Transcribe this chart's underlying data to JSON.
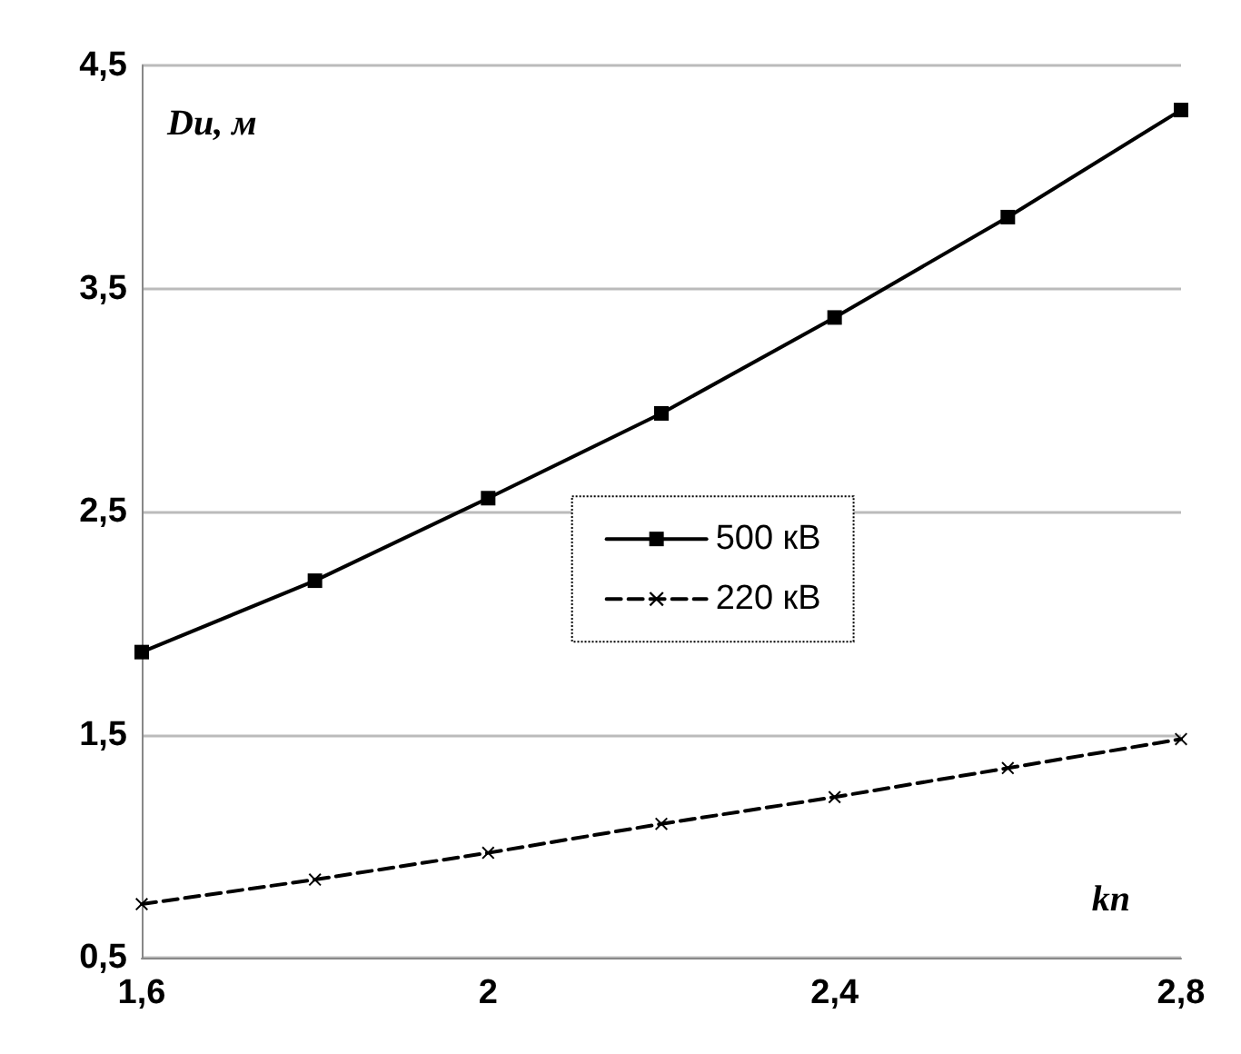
{
  "chart_data": {
    "type": "line",
    "xlabel": "kп",
    "ylabel": "Du, м",
    "x": [
      1.6,
      1.8,
      2.0,
      2.2,
      2.4,
      2.6,
      2.8
    ],
    "series": [
      {
        "name": "500 кВ",
        "color": "#000000",
        "marker": "square",
        "line_style": "solid",
        "values": [
          1.87,
          2.19,
          2.56,
          2.94,
          3.37,
          3.82,
          4.3
        ]
      },
      {
        "name": "220 кВ",
        "color": "#000000",
        "marker": "cross",
        "line_style": "dashed",
        "values": [
          0.74,
          0.85,
          0.97,
          1.1,
          1.22,
          1.35,
          1.48
        ]
      }
    ],
    "xlim": [
      1.6,
      2.8
    ],
    "xticks": [
      {
        "value": 1.6,
        "label": "1,6"
      },
      2,
      {
        "value": 2.4,
        "label": "2,4"
      },
      {
        "value": 2.8,
        "label": "2,8"
      }
    ],
    "ylim": [
      0.5,
      4.5
    ],
    "yticks": [
      {
        "value": 0.5,
        "label": "0,5"
      },
      {
        "value": 1.5,
        "label": "1,5"
      },
      {
        "value": 2.5,
        "label": "2,5"
      },
      {
        "value": 3.5,
        "label": "3,5"
      },
      {
        "value": 4.5,
        "label": "4,5"
      }
    ],
    "grid": "y",
    "legend": "center right"
  }
}
